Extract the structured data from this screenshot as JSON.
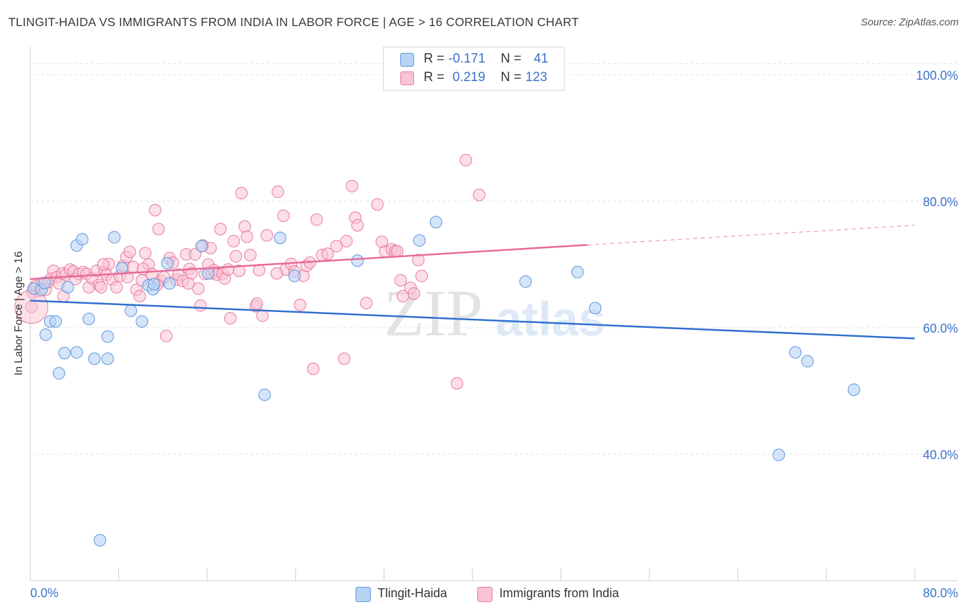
{
  "title": "TLINGIT-HAIDA VS IMMIGRANTS FROM INDIA IN LABOR FORCE | AGE > 16 CORRELATION CHART",
  "source": "Source: ZipAtlas.com",
  "watermark": {
    "zip": "ZIP",
    "atlas": "atlas"
  },
  "legend": {
    "series1": {
      "r_label": "R = ",
      "r_value": "-0.171",
      "n_label": "N = ",
      "n_value": "41"
    },
    "series2": {
      "r_label": "R = ",
      "r_value": "0.219",
      "n_label": "N = ",
      "n_value": "123"
    }
  },
  "colors": {
    "blue_fill": "#b8d4f5",
    "blue_stroke": "#5b94d9",
    "blue_line": "#2e6fce",
    "pink_fill": "#f9c3d3",
    "pink_stroke": "#e8789e",
    "pink_line": "#e8689a",
    "axis_label": "#3a72c8",
    "grid": "#e0e0e0"
  },
  "chart_data": {
    "type": "scatter",
    "title": "TLINGIT-HAIDA VS IMMIGRANTS FROM INDIA IN LABOR FORCE | AGE > 16 CORRELATION CHART",
    "xlabel": "",
    "ylabel": "In Labor Force | Age > 16",
    "xlim": [
      0,
      80
    ],
    "ylim": [
      20,
      104
    ],
    "x_tick_labels": [
      "0.0%",
      "80.0%"
    ],
    "y_ticks": [
      40,
      60,
      80,
      100
    ],
    "y_tick_labels": [
      "40.0%",
      "60.0%",
      "80.0%",
      "100.0%"
    ],
    "grid": true,
    "legend_position": "top-center",
    "series": [
      {
        "name": "Tlingit-Haida",
        "color": "#5b94d9",
        "points": [
          [
            0.3,
            66.2
          ],
          [
            1.0,
            66.0
          ],
          [
            1.3,
            67.1
          ],
          [
            1.4,
            58.9
          ],
          [
            1.8,
            61.0
          ],
          [
            2.3,
            61.0
          ],
          [
            2.6,
            52.8
          ],
          [
            3.1,
            56.0
          ],
          [
            3.4,
            66.4
          ],
          [
            4.2,
            56.1
          ],
          [
            4.2,
            73.0
          ],
          [
            4.7,
            74.0
          ],
          [
            5.3,
            61.4
          ],
          [
            5.8,
            55.1
          ],
          [
            6.3,
            26.4
          ],
          [
            7.0,
            58.6
          ],
          [
            7.0,
            55.1
          ],
          [
            7.6,
            74.3
          ],
          [
            8.3,
            69.4
          ],
          [
            9.1,
            62.7
          ],
          [
            10.1,
            61.0
          ],
          [
            10.7,
            66.7
          ],
          [
            11.1,
            66.1
          ],
          [
            11.2,
            66.9
          ],
          [
            12.4,
            70.2
          ],
          [
            15.5,
            72.9
          ],
          [
            16.1,
            68.6
          ],
          [
            22.6,
            74.2
          ],
          [
            23.9,
            68.2
          ],
          [
            29.6,
            70.6
          ],
          [
            35.2,
            73.8
          ],
          [
            36.7,
            76.7
          ],
          [
            44.8,
            67.3
          ],
          [
            49.5,
            68.8
          ],
          [
            51.1,
            63.1
          ],
          [
            69.2,
            56.1
          ],
          [
            70.3,
            54.7
          ],
          [
            67.7,
            39.9
          ],
          [
            74.5,
            50.2
          ],
          [
            21.2,
            49.4
          ],
          [
            12.6,
            67.0
          ]
        ],
        "trend": {
          "x": [
            0,
            80
          ],
          "y": [
            64.3,
            58.3
          ]
        }
      },
      {
        "name": "Immigrants from India",
        "color": "#e8789e",
        "points": [
          [
            0.1,
            63.3
          ],
          [
            0.4,
            66.2
          ],
          [
            0.7,
            65.8
          ],
          [
            1.0,
            67.0
          ],
          [
            1.4,
            66.0
          ],
          [
            1.6,
            67.2
          ],
          [
            1.9,
            67.8
          ],
          [
            2.1,
            69.0
          ],
          [
            2.4,
            68.0
          ],
          [
            2.6,
            67.0
          ],
          [
            2.9,
            68.6
          ],
          [
            3.2,
            68.4
          ],
          [
            3.6,
            69.2
          ],
          [
            3.9,
            68.9
          ],
          [
            4.1,
            67.7
          ],
          [
            4.4,
            68.5
          ],
          [
            4.8,
            68.8
          ],
          [
            5.1,
            68.5
          ],
          [
            5.3,
            66.4
          ],
          [
            5.6,
            67.8
          ],
          [
            6.0,
            69.0
          ],
          [
            6.2,
            66.8
          ],
          [
            6.4,
            66.4
          ],
          [
            6.7,
            68.8
          ],
          [
            6.9,
            68.4
          ],
          [
            7.1,
            70.1
          ],
          [
            7.4,
            67.6
          ],
          [
            7.8,
            66.4
          ],
          [
            8.1,
            68.2
          ],
          [
            8.4,
            69.8
          ],
          [
            8.7,
            71.2
          ],
          [
            9.0,
            72.0
          ],
          [
            9.3,
            69.6
          ],
          [
            9.6,
            66.0
          ],
          [
            9.9,
            65.0
          ],
          [
            10.1,
            67.5
          ],
          [
            10.4,
            71.8
          ],
          [
            10.7,
            70.0
          ],
          [
            11.0,
            68.5
          ],
          [
            11.3,
            78.6
          ],
          [
            11.6,
            75.6
          ],
          [
            11.8,
            67.4
          ],
          [
            12.1,
            68.0
          ],
          [
            12.3,
            58.7
          ],
          [
            12.6,
            71.0
          ],
          [
            12.9,
            70.3
          ],
          [
            13.2,
            67.6
          ],
          [
            13.4,
            68.4
          ],
          [
            13.8,
            67.4
          ],
          [
            14.1,
            71.6
          ],
          [
            14.4,
            69.3
          ],
          [
            14.6,
            68.6
          ],
          [
            14.9,
            71.6
          ],
          [
            15.2,
            66.2
          ],
          [
            15.4,
            63.5
          ],
          [
            15.6,
            73.0
          ],
          [
            15.8,
            68.5
          ],
          [
            16.1,
            70.0
          ],
          [
            16.4,
            68.6
          ],
          [
            16.6,
            69.1
          ],
          [
            16.9,
            68.4
          ],
          [
            17.2,
            75.6
          ],
          [
            17.4,
            68.5
          ],
          [
            17.6,
            67.8
          ],
          [
            17.9,
            69.2
          ],
          [
            18.1,
            61.5
          ],
          [
            18.4,
            73.7
          ],
          [
            18.6,
            71.3
          ],
          [
            18.9,
            69.0
          ],
          [
            19.1,
            81.3
          ],
          [
            19.4,
            76.0
          ],
          [
            19.6,
            74.4
          ],
          [
            19.9,
            71.5
          ],
          [
            20.4,
            63.4
          ],
          [
            20.7,
            69.1
          ],
          [
            21.0,
            61.9
          ],
          [
            21.4,
            74.6
          ],
          [
            22.4,
            81.5
          ],
          [
            22.9,
            77.7
          ],
          [
            23.1,
            69.2
          ],
          [
            23.6,
            70.1
          ],
          [
            23.9,
            68.9
          ],
          [
            24.4,
            63.6
          ],
          [
            24.7,
            68.2
          ],
          [
            25.0,
            69.8
          ],
          [
            25.3,
            70.3
          ],
          [
            25.6,
            53.5
          ],
          [
            25.9,
            77.1
          ],
          [
            26.4,
            71.5
          ],
          [
            26.9,
            71.7
          ],
          [
            28.4,
            55.1
          ],
          [
            28.6,
            73.7
          ],
          [
            29.1,
            82.4
          ],
          [
            29.4,
            77.4
          ],
          [
            29.6,
            76.2
          ],
          [
            30.4,
            63.9
          ],
          [
            31.4,
            79.5
          ],
          [
            32.1,
            72.1
          ],
          [
            32.7,
            72.4
          ],
          [
            33.0,
            72.1
          ],
          [
            33.2,
            72.1
          ],
          [
            33.7,
            65.0
          ],
          [
            34.4,
            66.3
          ],
          [
            34.7,
            65.4
          ],
          [
            35.1,
            70.7
          ],
          [
            35.4,
            68.2
          ],
          [
            38.6,
            51.2
          ],
          [
            39.4,
            86.5
          ],
          [
            40.6,
            81.0
          ],
          [
            0.2,
            65.6
          ],
          [
            0.5,
            66.6
          ],
          [
            3.0,
            65.0
          ],
          [
            6.6,
            70.0
          ],
          [
            8.8,
            68.0
          ],
          [
            10.2,
            69.3
          ],
          [
            11.5,
            66.8
          ],
          [
            14.3,
            67.0
          ],
          [
            16.3,
            72.6
          ],
          [
            20.5,
            63.8
          ],
          [
            22.3,
            68.6
          ],
          [
            27.7,
            72.9
          ],
          [
            31.8,
            73.6
          ],
          [
            33.5,
            67.5
          ]
        ],
        "trend": {
          "x": [
            0,
            50.4
          ],
          "y": [
            67.7,
            73.1
          ],
          "dashed_extension": {
            "x": [
              50.4,
              80
            ],
            "y": [
              73.1,
              76.2
            ]
          }
        }
      }
    ]
  },
  "bottom_legend": [
    {
      "label": "Tlingit-Haida"
    },
    {
      "label": "Immigrants from India"
    }
  ]
}
